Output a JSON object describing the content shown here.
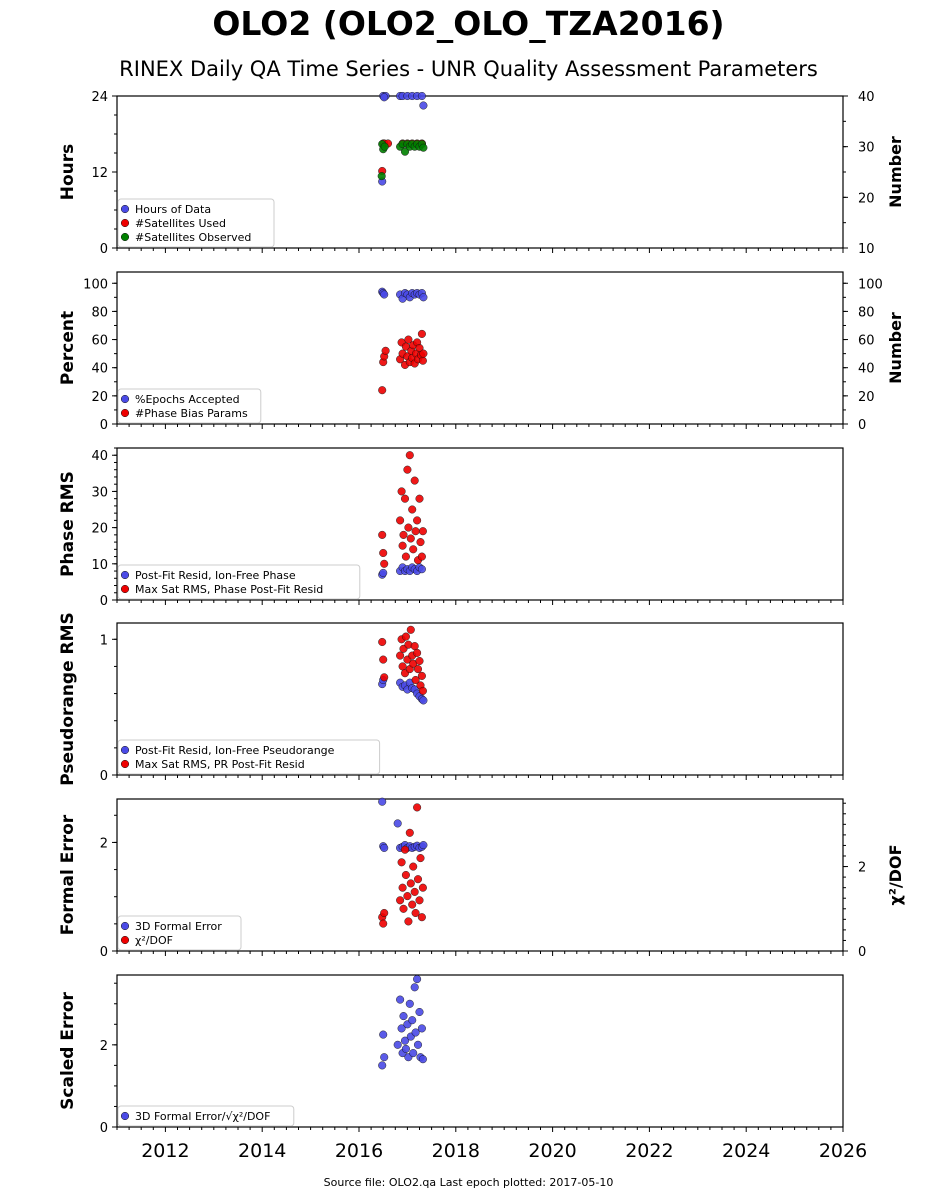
{
  "title": "OLO2 (OLO2_OLO_TZA2016)",
  "subtitle": "RINEX Daily QA Time Series - UNR Quality Assessment Parameters",
  "footer": "Source file: OLO2.qa Last epoch plotted: 2017-05-10",
  "colors": {
    "blue": "#4a4ae6",
    "red": "#ee0000",
    "green": "#008000",
    "axis": "#000000"
  },
  "chart_data": {
    "type": "scatter",
    "x_axis": {
      "range": [
        2011.0,
        2026.0
      ],
      "ticks": [
        2012,
        2014,
        2016,
        2018,
        2020,
        2022,
        2024,
        2026
      ],
      "minor_step": 0.25
    },
    "panels": [
      {
        "ylabel": "Hours",
        "ylim": [
          0,
          24
        ],
        "yticks": [
          0,
          12,
          24
        ],
        "y_minor_step": 3,
        "ylabel_right": "Number",
        "ylim_right": [
          10,
          40
        ],
        "yticks_right": [
          10,
          20,
          30,
          40
        ],
        "y_minor_right": 5,
        "legend": [
          "Hours of Data",
          "#Satellites Used",
          "#Satellites Observed"
        ],
        "series": [
          {
            "name": "Hours of Data",
            "color": "blue",
            "axis": "left",
            "x": [
              2016.5,
              2016.55,
              2016.52,
              2016.85,
              2016.9,
              2017.0,
              2017.1,
              2017.2,
              2017.3,
              2017.33,
              2016.48
            ],
            "y": [
              24,
              24,
              23.8,
              24,
              24,
              24,
              24,
              24,
              24,
              22.5,
              10.5
            ]
          },
          {
            "name": "#Satellites Used",
            "color": "red",
            "axis": "left",
            "x": [
              2016.5,
              2016.52,
              2016.6,
              2016.9,
              2017.0,
              2017.1,
              2017.2,
              2017.3
            ],
            "y": [
              16.5,
              16.5,
              16.5,
              16.5,
              16.5,
              16.5,
              16.5,
              16.5
            ]
          },
          {
            "name": "#Satellites Observed",
            "color": "green",
            "axis": "right",
            "x": [
              2016.48,
              2016.5,
              2016.53,
              2016.85,
              2016.9,
              2016.95,
              2017.0,
              2017.05,
              2017.1,
              2017.15,
              2017.2,
              2017.25,
              2017.3,
              2017.33
            ],
            "y": [
              30.5,
              29.5,
              30,
              30,
              30.5,
              29,
              30.5,
              30,
              30.5,
              30,
              30.5,
              30,
              30.5,
              29.8
            ]
          },
          {
            "name": "",
            "color": "red",
            "axis": "right",
            "x": [
              2016.48
            ],
            "y": [
              25.2
            ]
          },
          {
            "name": "",
            "color": "green",
            "axis": "right",
            "x": [
              2016.47
            ],
            "y": [
              24.2
            ]
          }
        ]
      },
      {
        "ylabel": "Percent",
        "ylim": [
          0,
          108
        ],
        "yticks": [
          0,
          20,
          40,
          60,
          80,
          100
        ],
        "y_minor_step": 10,
        "ylabel_right": "Number",
        "ylim_right": [
          0,
          108
        ],
        "yticks_right": [
          0,
          20,
          40,
          60,
          80,
          100
        ],
        "y_minor_right": 10,
        "legend": [
          "%Epochs Accepted",
          "#Phase Bias Params"
        ],
        "series": [
          {
            "name": "%Epochs Accepted",
            "color": "blue",
            "axis": "left",
            "x": [
              2016.48,
              2016.5,
              2016.52,
              2016.85,
              2016.9,
              2016.95,
              2017.0,
              2017.05,
              2017.1,
              2017.15,
              2017.2,
              2017.25,
              2017.3,
              2017.33
            ],
            "y": [
              94,
              93,
              92,
              92,
              89,
              93,
              92,
              90,
              93,
              92,
              93,
              92,
              93,
              90
            ]
          },
          {
            "name": "#Phase Bias Params",
            "color": "red",
            "axis": "left",
            "x": [
              2016.48,
              2016.5,
              2016.52,
              2016.55,
              2016.85,
              2016.88,
              2016.9,
              2016.95,
              2016.97,
              2017.0,
              2017.02,
              2017.05,
              2017.08,
              2017.1,
              2017.12,
              2017.15,
              2017.18,
              2017.2,
              2017.22,
              2017.25,
              2017.28,
              2017.3,
              2017.32,
              2017.33
            ],
            "y": [
              24,
              44,
              48,
              52,
              46,
              58,
              50,
              42,
              55,
              48,
              60,
              44,
              52,
              47,
              56,
              43,
              50,
              58,
              46,
              54,
              49,
              64,
              45,
              50
            ]
          }
        ]
      },
      {
        "ylabel": "Phase RMS",
        "ylim": [
          0,
          42
        ],
        "yticks": [
          0,
          10,
          20,
          30,
          40
        ],
        "y_minor_step": 2,
        "legend": [
          "Post-Fit Resid, Ion-Free Phase",
          "Max Sat RMS, Phase Post-Fit Resid"
        ],
        "series": [
          {
            "name": "Post-Fit Resid, Ion-Free Phase",
            "color": "blue",
            "axis": "left",
            "x": [
              2016.48,
              2016.5,
              2016.85,
              2016.9,
              2016.95,
              2017.0,
              2017.05,
              2017.1,
              2017.15,
              2017.2,
              2017.25,
              2017.3
            ],
            "y": [
              7,
              7.5,
              8,
              9,
              8,
              8.5,
              8,
              9,
              8.5,
              8,
              9,
              8.5
            ]
          },
          {
            "name": "Max Sat RMS, Phase Post-Fit Resid",
            "color": "red",
            "axis": "left",
            "x": [
              2016.48,
              2016.5,
              2016.52,
              2016.85,
              2016.88,
              2016.9,
              2016.92,
              2016.95,
              2016.97,
              2017.0,
              2017.02,
              2017.05,
              2017.07,
              2017.1,
              2017.12,
              2017.15,
              2017.17,
              2017.2,
              2017.22,
              2017.25,
              2017.27,
              2017.3,
              2017.32
            ],
            "y": [
              18,
              13,
              10,
              22,
              30,
              15,
              18,
              28,
              12,
              36,
              20,
              40,
              17,
              25,
              14,
              33,
              19,
              22,
              11,
              28,
              16,
              12,
              19
            ]
          }
        ]
      },
      {
        "ylabel": "Pseudorange RMS",
        "ylim": [
          0,
          1.12
        ],
        "yticks": [
          0,
          1
        ],
        "y_minor_step": 0.2,
        "legend": [
          "Post-Fit Resid, Ion-Free Pseudorange",
          "Max Sat RMS, PR Post-Fit Resid"
        ],
        "series": [
          {
            "name": "Post-Fit Resid, Ion-Free Pseudorange",
            "color": "blue",
            "axis": "left",
            "x": [
              2016.48,
              2016.5,
              2016.85,
              2016.9,
              2016.95,
              2017.0,
              2017.05,
              2017.1,
              2017.15,
              2017.2,
              2017.25,
              2017.3,
              2017.33
            ],
            "y": [
              0.67,
              0.7,
              0.68,
              0.65,
              0.66,
              0.63,
              0.68,
              0.64,
              0.63,
              0.6,
              0.58,
              0.56,
              0.55
            ]
          },
          {
            "name": "Max Sat RMS, PR Post-Fit Resid",
            "color": "red",
            "axis": "left",
            "x": [
              2016.48,
              2016.5,
              2016.52,
              2016.85,
              2016.88,
              2016.9,
              2016.92,
              2016.95,
              2016.97,
              2017.0,
              2017.02,
              2017.05,
              2017.07,
              2017.1,
              2017.12,
              2017.15,
              2017.17,
              2017.2,
              2017.22,
              2017.25,
              2017.27,
              2017.3,
              2017.32
            ],
            "y": [
              0.98,
              0.85,
              0.72,
              0.88,
              1.0,
              0.8,
              0.93,
              0.75,
              1.02,
              0.85,
              0.96,
              0.78,
              1.07,
              0.88,
              0.82,
              0.95,
              0.7,
              0.9,
              0.78,
              0.84,
              0.66,
              0.73,
              0.62
            ]
          }
        ]
      },
      {
        "ylabel": "Formal Error",
        "ylim": [
          0,
          2.8
        ],
        "yticks": [
          0,
          2
        ],
        "y_minor_step": 0.5,
        "ylabel_right": "χ²/DOF",
        "ylim_right": [
          0,
          3.6
        ],
        "yticks_right": [
          0,
          2
        ],
        "y_minor_right": 0.25,
        "legend": [
          "3D Formal Error",
          "χ²/DOF"
        ],
        "series": [
          {
            "name": "3D Formal Error",
            "color": "blue",
            "axis": "left",
            "x": [
              2016.48,
              2016.5,
              2016.52,
              2016.8,
              2016.85,
              2016.9,
              2016.95,
              2017.0,
              2017.05,
              2017.1,
              2017.15,
              2017.2,
              2017.25,
              2017.3,
              2017.33
            ],
            "y": [
              2.75,
              1.93,
              1.9,
              2.35,
              1.9,
              1.92,
              1.95,
              1.9,
              1.93,
              1.9,
              1.92,
              1.94,
              1.9,
              1.92,
              1.95
            ]
          },
          {
            "name": "χ²/DOF",
            "color": "red",
            "axis": "right",
            "x": [
              2016.48,
              2016.5,
              2016.52,
              2016.85,
              2016.88,
              2016.9,
              2016.92,
              2016.95,
              2016.97,
              2017.0,
              2017.02,
              2017.05,
              2017.07,
              2017.1,
              2017.12,
              2017.15,
              2017.17,
              2017.2,
              2017.22,
              2017.25,
              2017.27,
              2017.3,
              2017.32
            ],
            "y": [
              0.8,
              0.65,
              0.9,
              1.2,
              2.1,
              1.5,
              1.0,
              2.4,
              1.8,
              1.3,
              0.7,
              2.8,
              1.6,
              1.1,
              2.0,
              1.4,
              0.9,
              3.4,
              1.7,
              1.2,
              2.2,
              0.8,
              1.5
            ]
          }
        ]
      },
      {
        "ylabel": "Scaled Error",
        "ylim": [
          0,
          3.7
        ],
        "yticks": [
          0,
          2
        ],
        "y_minor_step": 0.5,
        "legend": [
          "3D Formal Error/√χ²/DOF"
        ],
        "series": [
          {
            "name": "3D Formal Error/√χ²/DOF",
            "color": "blue",
            "axis": "left",
            "x": [
              2016.48,
              2016.5,
              2016.52,
              2016.8,
              2016.85,
              2016.88,
              2016.9,
              2016.92,
              2016.95,
              2016.97,
              2017.0,
              2017.02,
              2017.05,
              2017.07,
              2017.1,
              2017.12,
              2017.15,
              2017.17,
              2017.2,
              2017.22,
              2017.25,
              2017.27,
              2017.3,
              2017.32
            ],
            "y": [
              1.5,
              2.25,
              1.7,
              2.0,
              3.1,
              2.4,
              1.8,
              2.7,
              2.1,
              1.9,
              2.5,
              1.7,
              3.0,
              2.2,
              2.6,
              1.8,
              3.4,
              2.3,
              3.6,
              2.0,
              2.8,
              1.7,
              2.4,
              1.65
            ]
          }
        ]
      }
    ]
  }
}
